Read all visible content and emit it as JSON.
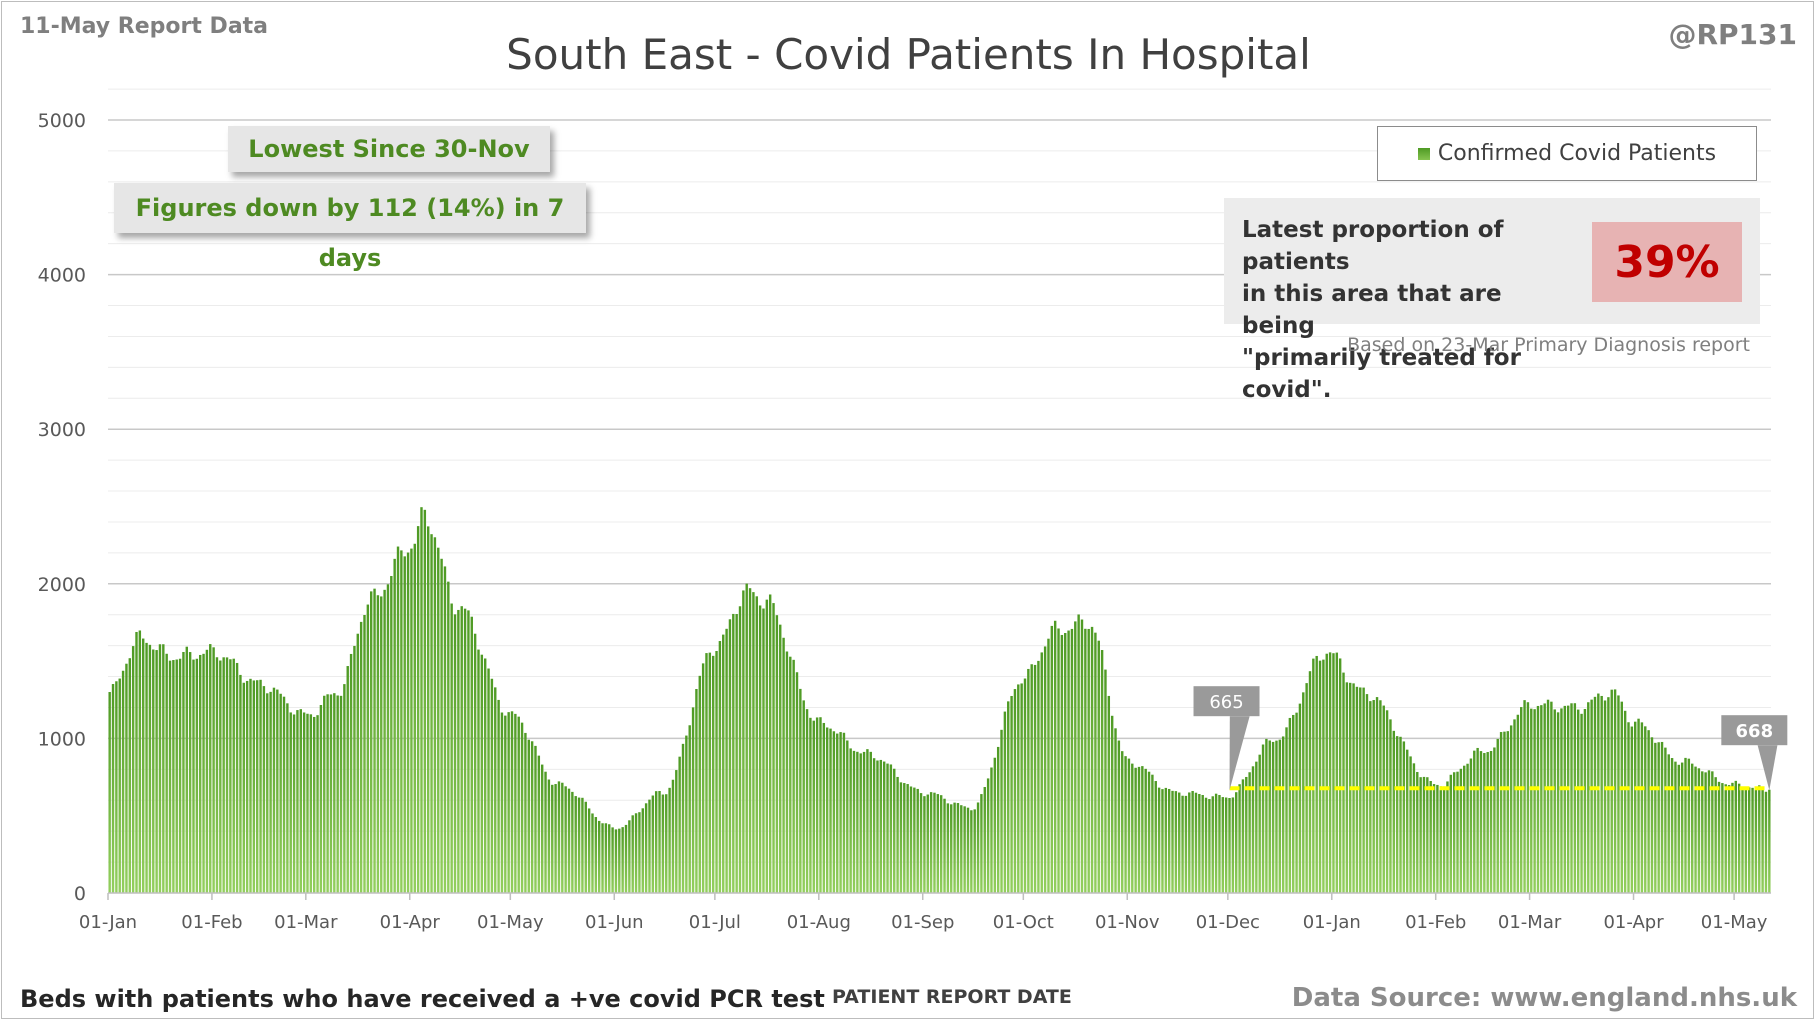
{
  "header": {
    "report_date": "11-May Report Data",
    "author": "@RP131",
    "title": "South East - Covid Patients In Hospital"
  },
  "callouts": {
    "lowest": "Lowest Since 30-Nov",
    "change": "Figures down by 112 (14%) in 7 days"
  },
  "legend": {
    "label": "Confirmed Covid Patients"
  },
  "proportion": {
    "text_line1": "Latest proportion of patients",
    "text_line2": "in this area that are being",
    "text_line3": "\"primarily treated for covid\".",
    "value": "39%",
    "source_note": "Based on 23-Mar Primary Diagnosis report"
  },
  "footer": {
    "left": "Beds with patients who have received a +ve covid PCR test",
    "axis_title": "PATIENT REPORT DATE",
    "source": "Data Source: www.england.nhs.uk"
  },
  "colors": {
    "bar_top": "#4e9a24",
    "bar_bottom": "#93cf5e",
    "dashed_line": "#ffff00",
    "gridline": "#d9d9d9",
    "marker_fill": "#9a9a9a"
  },
  "chart_data": {
    "type": "bar",
    "title": "South East - Covid Patients In Hospital",
    "xlabel": "PATIENT REPORT DATE",
    "ylabel": "",
    "ylim": [
      0,
      5000
    ],
    "yticks": [
      0,
      1000,
      2000,
      3000,
      4000,
      5000
    ],
    "grid": true,
    "legend_position": "top-right",
    "x_start": "01-Jan",
    "x_end": "11-May",
    "x_tick_labels": [
      "01-Jan",
      "01-Feb",
      "01-Mar",
      "01-Apr",
      "01-May",
      "01-Jun",
      "01-Jul",
      "01-Aug",
      "01-Sep",
      "01-Oct",
      "01-Nov",
      "01-Dec",
      "01-Jan",
      "01-Feb",
      "01-Mar",
      "01-Apr",
      "01-May"
    ],
    "series": [
      {
        "name": "Confirmed Covid Patients",
        "control_points": [
          {
            "x": "01-Jan",
            "y": 1300
          },
          {
            "x": "10-Jan",
            "y": 1650
          },
          {
            "x": "20-Jan",
            "y": 1530
          },
          {
            "x": "01-Feb",
            "y": 1560
          },
          {
            "x": "15-Feb",
            "y": 1350
          },
          {
            "x": "01-Mar",
            "y": 1150
          },
          {
            "x": "10-Mar",
            "y": 1300
          },
          {
            "x": "20-Mar",
            "y": 1900
          },
          {
            "x": "01-Apr",
            "y": 2250
          },
          {
            "x": "05-Apr",
            "y": 2440
          },
          {
            "x": "15-Apr",
            "y": 1850
          },
          {
            "x": "01-May",
            "y": 1150
          },
          {
            "x": "15-May",
            "y": 700
          },
          {
            "x": "01-Jun",
            "y": 420
          },
          {
            "x": "15-Jun",
            "y": 650
          },
          {
            "x": "01-Jul",
            "y": 1600
          },
          {
            "x": "10-Jul",
            "y": 1950
          },
          {
            "x": "15-Jul",
            "y": 1900
          },
          {
            "x": "01-Aug",
            "y": 1100
          },
          {
            "x": "15-Aug",
            "y": 900
          },
          {
            "x": "01-Sep",
            "y": 650
          },
          {
            "x": "15-Sep",
            "y": 550
          },
          {
            "x": "01-Oct",
            "y": 1400
          },
          {
            "x": "10-Oct",
            "y": 1700
          },
          {
            "x": "20-Oct",
            "y": 1750
          },
          {
            "x": "01-Nov",
            "y": 850
          },
          {
            "x": "15-Nov",
            "y": 650
          },
          {
            "x": "30-Nov",
            "y": 620
          },
          {
            "x": "15-Dec",
            "y": 1000
          },
          {
            "x": "30-Dec",
            "y": 1560
          },
          {
            "x": "10-Jan",
            "y": 1300
          },
          {
            "x": "01-Feb",
            "y": 700
          },
          {
            "x": "15-Feb",
            "y": 920
          },
          {
            "x": "01-Mar",
            "y": 1220
          },
          {
            "x": "15-Mar",
            "y": 1200
          },
          {
            "x": "25-Mar",
            "y": 1300
          },
          {
            "x": "01-Apr",
            "y": 1100
          },
          {
            "x": "15-Apr",
            "y": 850
          },
          {
            "x": "01-May",
            "y": 700
          },
          {
            "x": "11-May",
            "y": 668
          }
        ]
      }
    ],
    "annotations": [
      {
        "x": "01-Dec",
        "value": "665"
      },
      {
        "x": "11-May",
        "value": "668"
      }
    ],
    "reference_line": {
      "from": "01-Dec",
      "to": "11-May",
      "y": 665,
      "style": "dashed"
    }
  }
}
